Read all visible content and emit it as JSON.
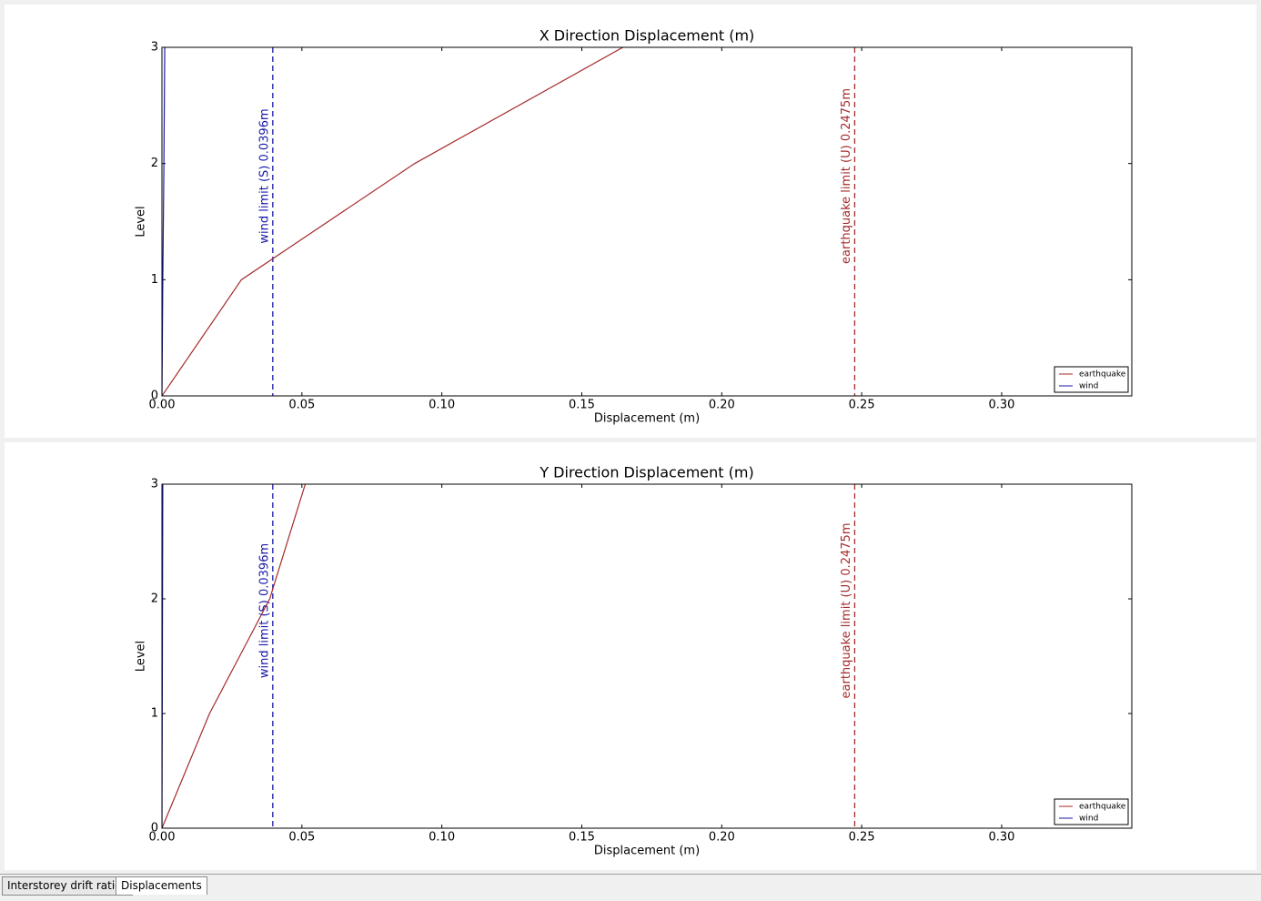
{
  "chart_data": [
    {
      "type": "line",
      "title": "X Direction Displacement (m)",
      "xlabel": "Displacement (m)",
      "ylabel": "Level",
      "xlim": [
        0,
        0.3465
      ],
      "ylim": [
        0,
        3
      ],
      "xticks": [
        {
          "value": 0,
          "label": "0.00"
        },
        {
          "value": 0.05,
          "label": "0.05"
        },
        {
          "value": 0.1,
          "label": "0.10"
        },
        {
          "value": 0.15,
          "label": "0.15"
        },
        {
          "value": 0.2,
          "label": "0.20"
        },
        {
          "value": 0.25,
          "label": "0.25"
        },
        {
          "value": 0.3,
          "label": "0.30"
        }
      ],
      "yticks": [
        0,
        1,
        2,
        3
      ],
      "grid": false,
      "legend": "lower right",
      "series": [
        {
          "name": "earthquake",
          "color": "#a52a2a",
          "x": [
            0,
            0.0284,
            0.0903,
            0.1647
          ],
          "values": [
            0,
            1,
            2,
            3
          ]
        },
        {
          "name": "wind",
          "color": "#1a1aa8",
          "x": [
            0,
            0.0003,
            0.0007,
            0.001
          ],
          "values": [
            0,
            1,
            2,
            3
          ]
        }
      ],
      "annotations": [
        {
          "text": "wind limit (S) 0.0396m",
          "x": 0.0396,
          "color": "#1a1aa8"
        },
        {
          "text": "earthquake limit (U) 0.2475m",
          "x": 0.2475,
          "color": "#a52a2a"
        }
      ]
    },
    {
      "type": "line",
      "title": "Y Direction Displacement (m)",
      "xlabel": "Displacement (m)",
      "ylabel": "Level",
      "xlim": [
        0,
        0.3465
      ],
      "ylim": [
        0,
        3
      ],
      "xticks": [
        {
          "value": 0,
          "label": "0.00"
        },
        {
          "value": 0.05,
          "label": "0.05"
        },
        {
          "value": 0.1,
          "label": "0.10"
        },
        {
          "value": 0.15,
          "label": "0.15"
        },
        {
          "value": 0.2,
          "label": "0.20"
        },
        {
          "value": 0.25,
          "label": "0.25"
        },
        {
          "value": 0.3,
          "label": "0.30"
        }
      ],
      "yticks": [
        0,
        1,
        2,
        3
      ],
      "grid": false,
      "legend": "lower right",
      "series": [
        {
          "name": "earthquake",
          "color": "#a52a2a",
          "x": [
            0,
            0.017,
            0.0385,
            0.0512
          ],
          "values": [
            0,
            1,
            2,
            3
          ]
        },
        {
          "name": "wind",
          "color": "#1a1aa8",
          "x": [
            0,
            0.0001,
            0.0002,
            0.0003
          ],
          "values": [
            0,
            1,
            2,
            3
          ]
        }
      ],
      "annotations": [
        {
          "text": "wind limit (S) 0.0396m",
          "x": 0.0396,
          "color": "#1a1aa8"
        },
        {
          "text": "earthquake limit (U) 0.2475m",
          "x": 0.2475,
          "color": "#a52a2a"
        }
      ]
    }
  ],
  "tabs": [
    "Interstorey drift ratios",
    "Displacements"
  ]
}
